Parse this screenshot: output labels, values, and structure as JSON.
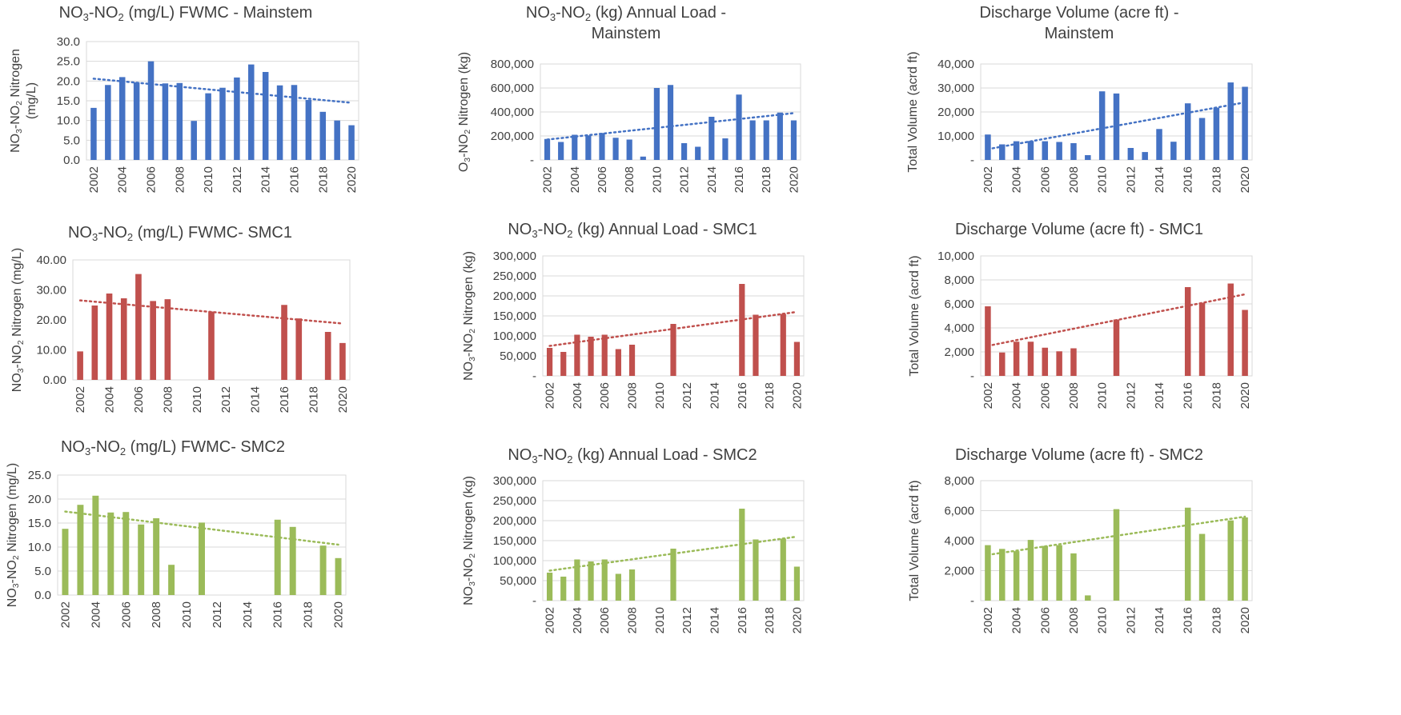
{
  "colors": {
    "mainstem": "#4472c4",
    "smc1": "#c0504d",
    "smc2": "#9bbb59",
    "axis_text": "#404040",
    "grid": "#d9d9d9"
  },
  "chart_data": [
    {
      "id": "fwmc-mainstem",
      "type": "bar",
      "title": "NO3-NO2 (mg/L) FWMC - Mainstem",
      "title_lines": [
        {
          "parts": [
            [
              "NO",
              ""
            ],
            [
              "3",
              "sub"
            ],
            [
              "-NO",
              ""
            ],
            [
              "2",
              "sub"
            ],
            [
              " (mg/L) FWMC - Mainstem",
              ""
            ]
          ]
        }
      ],
      "ylabel_lines": [
        {
          "parts": [
            [
              "NO",
              ""
            ],
            [
              "3",
              "sub"
            ],
            [
              "-NO",
              ""
            ],
            [
              "2",
              "sub"
            ],
            [
              " Nitrogen",
              ""
            ]
          ]
        },
        {
          "parts": [
            [
              "(mg/L)",
              ""
            ]
          ]
        }
      ],
      "color": "#4472c4",
      "ylim": [
        0,
        30
      ],
      "yticks": [
        0,
        5,
        10,
        15,
        20,
        25,
        30
      ],
      "ytick_labels": [
        "0.0",
        "5.0",
        "10.0",
        "15.0",
        "20.0",
        "25.0",
        "30.0"
      ],
      "gridlines": true,
      "x": [
        2002,
        2003,
        2004,
        2005,
        2006,
        2007,
        2008,
        2009,
        2010,
        2011,
        2012,
        2013,
        2014,
        2015,
        2016,
        2017,
        2018,
        2019,
        2020
      ],
      "values": [
        13.2,
        19.0,
        21.0,
        19.7,
        25.0,
        19.4,
        19.5,
        9.9,
        16.9,
        18.3,
        20.9,
        24.2,
        22.3,
        18.9,
        19.0,
        15.2,
        12.2,
        10.0,
        8.8
      ],
      "xtick_labels": [
        "2002",
        "2004",
        "2006",
        "2008",
        "2010",
        "2012",
        "2014",
        "2016",
        "2018",
        "2020"
      ],
      "trend": [
        20.6,
        14.5
      ]
    },
    {
      "id": "load-mainstem",
      "type": "bar",
      "title": "NO3-NO2 (kg) Annual Load - Mainstem",
      "title_lines": [
        {
          "parts": [
            [
              "NO",
              ""
            ],
            [
              "3",
              "sub"
            ],
            [
              "-NO",
              ""
            ],
            [
              "2",
              "sub"
            ],
            [
              " (kg) Annual Load -",
              ""
            ]
          ]
        },
        {
          "parts": [
            [
              "Mainstem",
              ""
            ]
          ]
        }
      ],
      "ylabel_lines": [
        {
          "parts": [
            [
              "O",
              ""
            ],
            [
              "3",
              "sub"
            ],
            [
              "-NO",
              ""
            ],
            [
              "2",
              "sub"
            ],
            [
              " Nitrogen (kg)",
              ""
            ]
          ]
        }
      ],
      "color": "#4472c4",
      "ylim": [
        0,
        800000
      ],
      "yticks": [
        0,
        200000,
        400000,
        600000,
        800000
      ],
      "ytick_labels": [
        "-",
        "200,000",
        "400,000",
        "600,000",
        "800,000"
      ],
      "gridlines": true,
      "x": [
        2002,
        2003,
        2004,
        2005,
        2006,
        2007,
        2008,
        2009,
        2010,
        2011,
        2012,
        2013,
        2014,
        2015,
        2016,
        2017,
        2018,
        2019,
        2020
      ],
      "values": [
        175000,
        150000,
        210000,
        205000,
        225000,
        185000,
        170000,
        28000,
        600000,
        625000,
        140000,
        110000,
        360000,
        180000,
        545000,
        330000,
        330000,
        395000,
        330000
      ],
      "xtick_labels": [
        "2002",
        "2004",
        "2006",
        "2008",
        "2010",
        "2012",
        "2014",
        "2016",
        "2018",
        "2020"
      ],
      "trend": [
        170000,
        390000
      ]
    },
    {
      "id": "volume-mainstem",
      "type": "bar",
      "title": "Discharge Volume (acre ft) - Mainstem",
      "title_lines": [
        {
          "parts": [
            [
              "Discharge Volume (acre ft) -",
              ""
            ]
          ]
        },
        {
          "parts": [
            [
              "Mainstem",
              ""
            ]
          ]
        }
      ],
      "ylabel_lines": [
        {
          "parts": [
            [
              "Total Volume (acrd ft)",
              ""
            ]
          ]
        }
      ],
      "color": "#4472c4",
      "ylim": [
        0,
        40000
      ],
      "yticks": [
        0,
        10000,
        20000,
        30000,
        40000
      ],
      "ytick_labels": [
        "-",
        "10,000",
        "20,000",
        "30,000",
        "40,000"
      ],
      "gridlines": true,
      "x": [
        2002,
        2003,
        2004,
        2005,
        2006,
        2007,
        2008,
        2009,
        2010,
        2011,
        2012,
        2013,
        2014,
        2015,
        2016,
        2017,
        2018,
        2019,
        2020
      ],
      "values": [
        10600,
        6500,
        7800,
        7900,
        7800,
        7500,
        7000,
        2000,
        28600,
        27700,
        5000,
        3300,
        12900,
        7600,
        23600,
        17500,
        21800,
        32300,
        30500
      ],
      "xtick_labels": [
        "2002",
        "2004",
        "2006",
        "2008",
        "2010",
        "2012",
        "2014",
        "2016",
        "2018",
        "2020"
      ],
      "trend": [
        4500,
        24000
      ]
    },
    {
      "id": "fwmc-smc1",
      "type": "bar",
      "title": "NO3-NO2 (mg/L) FWMC- SMC1",
      "title_lines": [
        {
          "parts": [
            [
              "NO",
              ""
            ],
            [
              "3",
              "sub"
            ],
            [
              "-NO",
              ""
            ],
            [
              "2",
              "sub"
            ],
            [
              " (mg/L) FWMC- SMC1",
              ""
            ]
          ]
        }
      ],
      "ylabel_lines": [
        {
          "parts": [
            [
              "NO",
              ""
            ],
            [
              "3",
              "sub"
            ],
            [
              "-NO",
              ""
            ],
            [
              "2",
              "sub"
            ],
            [
              " Nitrogen (mg/L)",
              ""
            ]
          ]
        }
      ],
      "color": "#c0504d",
      "ylim": [
        0,
        40
      ],
      "yticks": [
        0,
        10,
        20,
        30,
        40
      ],
      "ytick_labels": [
        "0.00",
        "10.00",
        "20.00",
        "30.00",
        "40.00"
      ],
      "gridlines": false,
      "x": [
        2002,
        2003,
        2004,
        2005,
        2006,
        2007,
        2008,
        2009,
        2010,
        2011,
        2012,
        2013,
        2014,
        2015,
        2016,
        2017,
        2018,
        2019,
        2020
      ],
      "values": [
        9.5,
        24.8,
        28.8,
        27.2,
        35.3,
        26.3,
        26.9,
        null,
        null,
        22.8,
        null,
        null,
        null,
        null,
        25.0,
        20.5,
        null,
        16.0,
        12.3
      ],
      "xtick_labels": [
        "2002",
        "2004",
        "2006",
        "2008",
        "2010",
        "2012",
        "2014",
        "2016",
        "2018",
        "2020"
      ],
      "trend": [
        26.5,
        18.8
      ]
    },
    {
      "id": "load-smc1",
      "type": "bar",
      "title": "NO3-NO2 (kg) Annual Load - SMC1",
      "title_lines": [
        {
          "parts": [
            [
              "NO",
              ""
            ],
            [
              "3",
              "sub"
            ],
            [
              "-NO",
              ""
            ],
            [
              "2",
              "sub"
            ],
            [
              " (kg) Annual Load - SMC1",
              ""
            ]
          ]
        }
      ],
      "ylabel_lines": [
        {
          "parts": [
            [
              "NO",
              ""
            ],
            [
              "3",
              "sub"
            ],
            [
              "-NO",
              ""
            ],
            [
              "2",
              "sub"
            ],
            [
              " Nitrogen (kg)",
              ""
            ]
          ]
        }
      ],
      "color": "#c0504d",
      "ylim": [
        0,
        300000
      ],
      "yticks": [
        0,
        50000,
        100000,
        150000,
        200000,
        250000,
        300000
      ],
      "ytick_labels": [
        "-",
        "50,000",
        "100,000",
        "150,000",
        "200,000",
        "250,000",
        "300,000"
      ],
      "gridlines": true,
      "x": [
        2002,
        2003,
        2004,
        2005,
        2006,
        2007,
        2008,
        2009,
        2010,
        2011,
        2012,
        2013,
        2014,
        2015,
        2016,
        2017,
        2018,
        2019,
        2020
      ],
      "values": [
        70000,
        60000,
        103000,
        98000,
        103000,
        67000,
        78000,
        null,
        null,
        130000,
        null,
        null,
        null,
        null,
        230000,
        153000,
        null,
        155000,
        85000
      ],
      "xtick_labels": [
        "2002",
        "2004",
        "2006",
        "2008",
        "2010",
        "2012",
        "2014",
        "2016",
        "2018",
        "2020"
      ],
      "trend": [
        75000,
        160000
      ]
    },
    {
      "id": "volume-smc1",
      "type": "bar",
      "title": "Discharge Volume (acre ft) - SMC1",
      "title_lines": [
        {
          "parts": [
            [
              "Discharge Volume (acre ft) - SMC1",
              ""
            ]
          ]
        }
      ],
      "ylabel_lines": [
        {
          "parts": [
            [
              "Total Volume (acrd ft)",
              ""
            ]
          ]
        }
      ],
      "color": "#c0504d",
      "ylim": [
        0,
        10000
      ],
      "yticks": [
        0,
        2000,
        4000,
        6000,
        8000,
        10000
      ],
      "ytick_labels": [
        "-",
        "2,000",
        "4,000",
        "6,000",
        "8,000",
        "10,000"
      ],
      "gridlines": true,
      "x": [
        2002,
        2003,
        2004,
        2005,
        2006,
        2007,
        2008,
        2009,
        2010,
        2011,
        2012,
        2013,
        2014,
        2015,
        2016,
        2017,
        2018,
        2019,
        2020
      ],
      "values": [
        5800,
        1950,
        2850,
        2850,
        2350,
        2050,
        2300,
        null,
        null,
        4700,
        null,
        null,
        null,
        null,
        7400,
        6100,
        null,
        7700,
        5500
      ],
      "xtick_labels": [
        "2002",
        "2004",
        "2006",
        "2008",
        "2010",
        "2012",
        "2014",
        "2016",
        "2018",
        "2020"
      ],
      "trend": [
        2500,
        6800
      ]
    },
    {
      "id": "fwmc-smc2",
      "type": "bar",
      "title": "NO3-NO2 (mg/L) FWMC- SMC2",
      "title_lines": [
        {
          "parts": [
            [
              "NO",
              ""
            ],
            [
              "3",
              "sub"
            ],
            [
              "-NO",
              ""
            ],
            [
              "2",
              "sub"
            ],
            [
              " (mg/L) FWMC- SMC2",
              ""
            ]
          ]
        }
      ],
      "ylabel_lines": [
        {
          "parts": [
            [
              "NO",
              ""
            ],
            [
              "3",
              "sub"
            ],
            [
              "-NO",
              ""
            ],
            [
              "2",
              "sub"
            ],
            [
              " Nitrogen (mg/L)",
              ""
            ]
          ]
        }
      ],
      "color": "#9bbb59",
      "ylim": [
        0,
        25
      ],
      "yticks": [
        0,
        5,
        10,
        15,
        20,
        25
      ],
      "ytick_labels": [
        "0.0",
        "5.0",
        "10.0",
        "15.0",
        "20.0",
        "25.0"
      ],
      "gridlines": true,
      "x": [
        2002,
        2003,
        2004,
        2005,
        2006,
        2007,
        2008,
        2009,
        2010,
        2011,
        2012,
        2013,
        2014,
        2015,
        2016,
        2017,
        2018,
        2019,
        2020
      ],
      "values": [
        13.8,
        18.8,
        20.7,
        17.2,
        17.3,
        14.7,
        16.0,
        6.3,
        null,
        15.1,
        null,
        null,
        null,
        null,
        15.7,
        14.2,
        null,
        10.3,
        7.7
      ],
      "xtick_labels": [
        "2002",
        "2004",
        "2006",
        "2008",
        "2010",
        "2012",
        "2014",
        "2016",
        "2018",
        "2020"
      ],
      "trend": [
        17.4,
        10.5
      ]
    },
    {
      "id": "load-smc2",
      "type": "bar",
      "title": "NO3-NO2 (kg) Annual Load - SMC2",
      "title_lines": [
        {
          "parts": [
            [
              "NO",
              ""
            ],
            [
              "3",
              "sub"
            ],
            [
              "-NO",
              ""
            ],
            [
              "2",
              "sub"
            ],
            [
              " (kg) Annual Load - SMC2",
              ""
            ]
          ]
        }
      ],
      "ylabel_lines": [
        {
          "parts": [
            [
              "NO",
              ""
            ],
            [
              "3",
              "sub"
            ],
            [
              "-NO",
              ""
            ],
            [
              "2",
              "sub"
            ],
            [
              " Nitrogen (kg)",
              ""
            ]
          ]
        }
      ],
      "color": "#9bbb59",
      "ylim": [
        0,
        300000
      ],
      "yticks": [
        0,
        50000,
        100000,
        150000,
        200000,
        250000,
        300000
      ],
      "ytick_labels": [
        "-",
        "50,000",
        "100,000",
        "150,000",
        "200,000",
        "250,000",
        "300,000"
      ],
      "gridlines": true,
      "x": [
        2002,
        2003,
        2004,
        2005,
        2006,
        2007,
        2008,
        2009,
        2010,
        2011,
        2012,
        2013,
        2014,
        2015,
        2016,
        2017,
        2018,
        2019,
        2020
      ],
      "values": [
        70000,
        60000,
        103000,
        98000,
        103000,
        67000,
        78000,
        null,
        null,
        130000,
        null,
        null,
        null,
        null,
        230000,
        153000,
        null,
        155000,
        85000
      ],
      "xtick_labels": [
        "2002",
        "2004",
        "2006",
        "2008",
        "2010",
        "2012",
        "2014",
        "2016",
        "2018",
        "2020"
      ],
      "trend": [
        75000,
        160000
      ]
    },
    {
      "id": "volume-smc2",
      "type": "bar",
      "title": "Discharge Volume (acre ft) - SMC2",
      "title_lines": [
        {
          "parts": [
            [
              "Discharge Volume (acre ft) - SMC2",
              ""
            ]
          ]
        }
      ],
      "ylabel_lines": [
        {
          "parts": [
            [
              "Total Volume (acrd ft)",
              ""
            ]
          ]
        }
      ],
      "color": "#9bbb59",
      "ylim": [
        0,
        8000
      ],
      "yticks": [
        0,
        2000,
        4000,
        6000,
        8000
      ],
      "ytick_labels": [
        "-",
        "2,000",
        "4,000",
        "6,000",
        "8,000"
      ],
      "gridlines": true,
      "x": [
        2002,
        2003,
        2004,
        2005,
        2006,
        2007,
        2008,
        2009,
        2010,
        2011,
        2012,
        2013,
        2014,
        2015,
        2016,
        2017,
        2018,
        2019,
        2020
      ],
      "values": [
        3700,
        3450,
        3300,
        4050,
        3650,
        3700,
        3150,
        350,
        null,
        6100,
        null,
        null,
        null,
        null,
        6200,
        4450,
        null,
        5350,
        5550
      ],
      "xtick_labels": [
        "2002",
        "2004",
        "2006",
        "2008",
        "2010",
        "2012",
        "2014",
        "2016",
        "2018",
        "2020"
      ],
      "trend": [
        3050,
        5600
      ]
    }
  ]
}
